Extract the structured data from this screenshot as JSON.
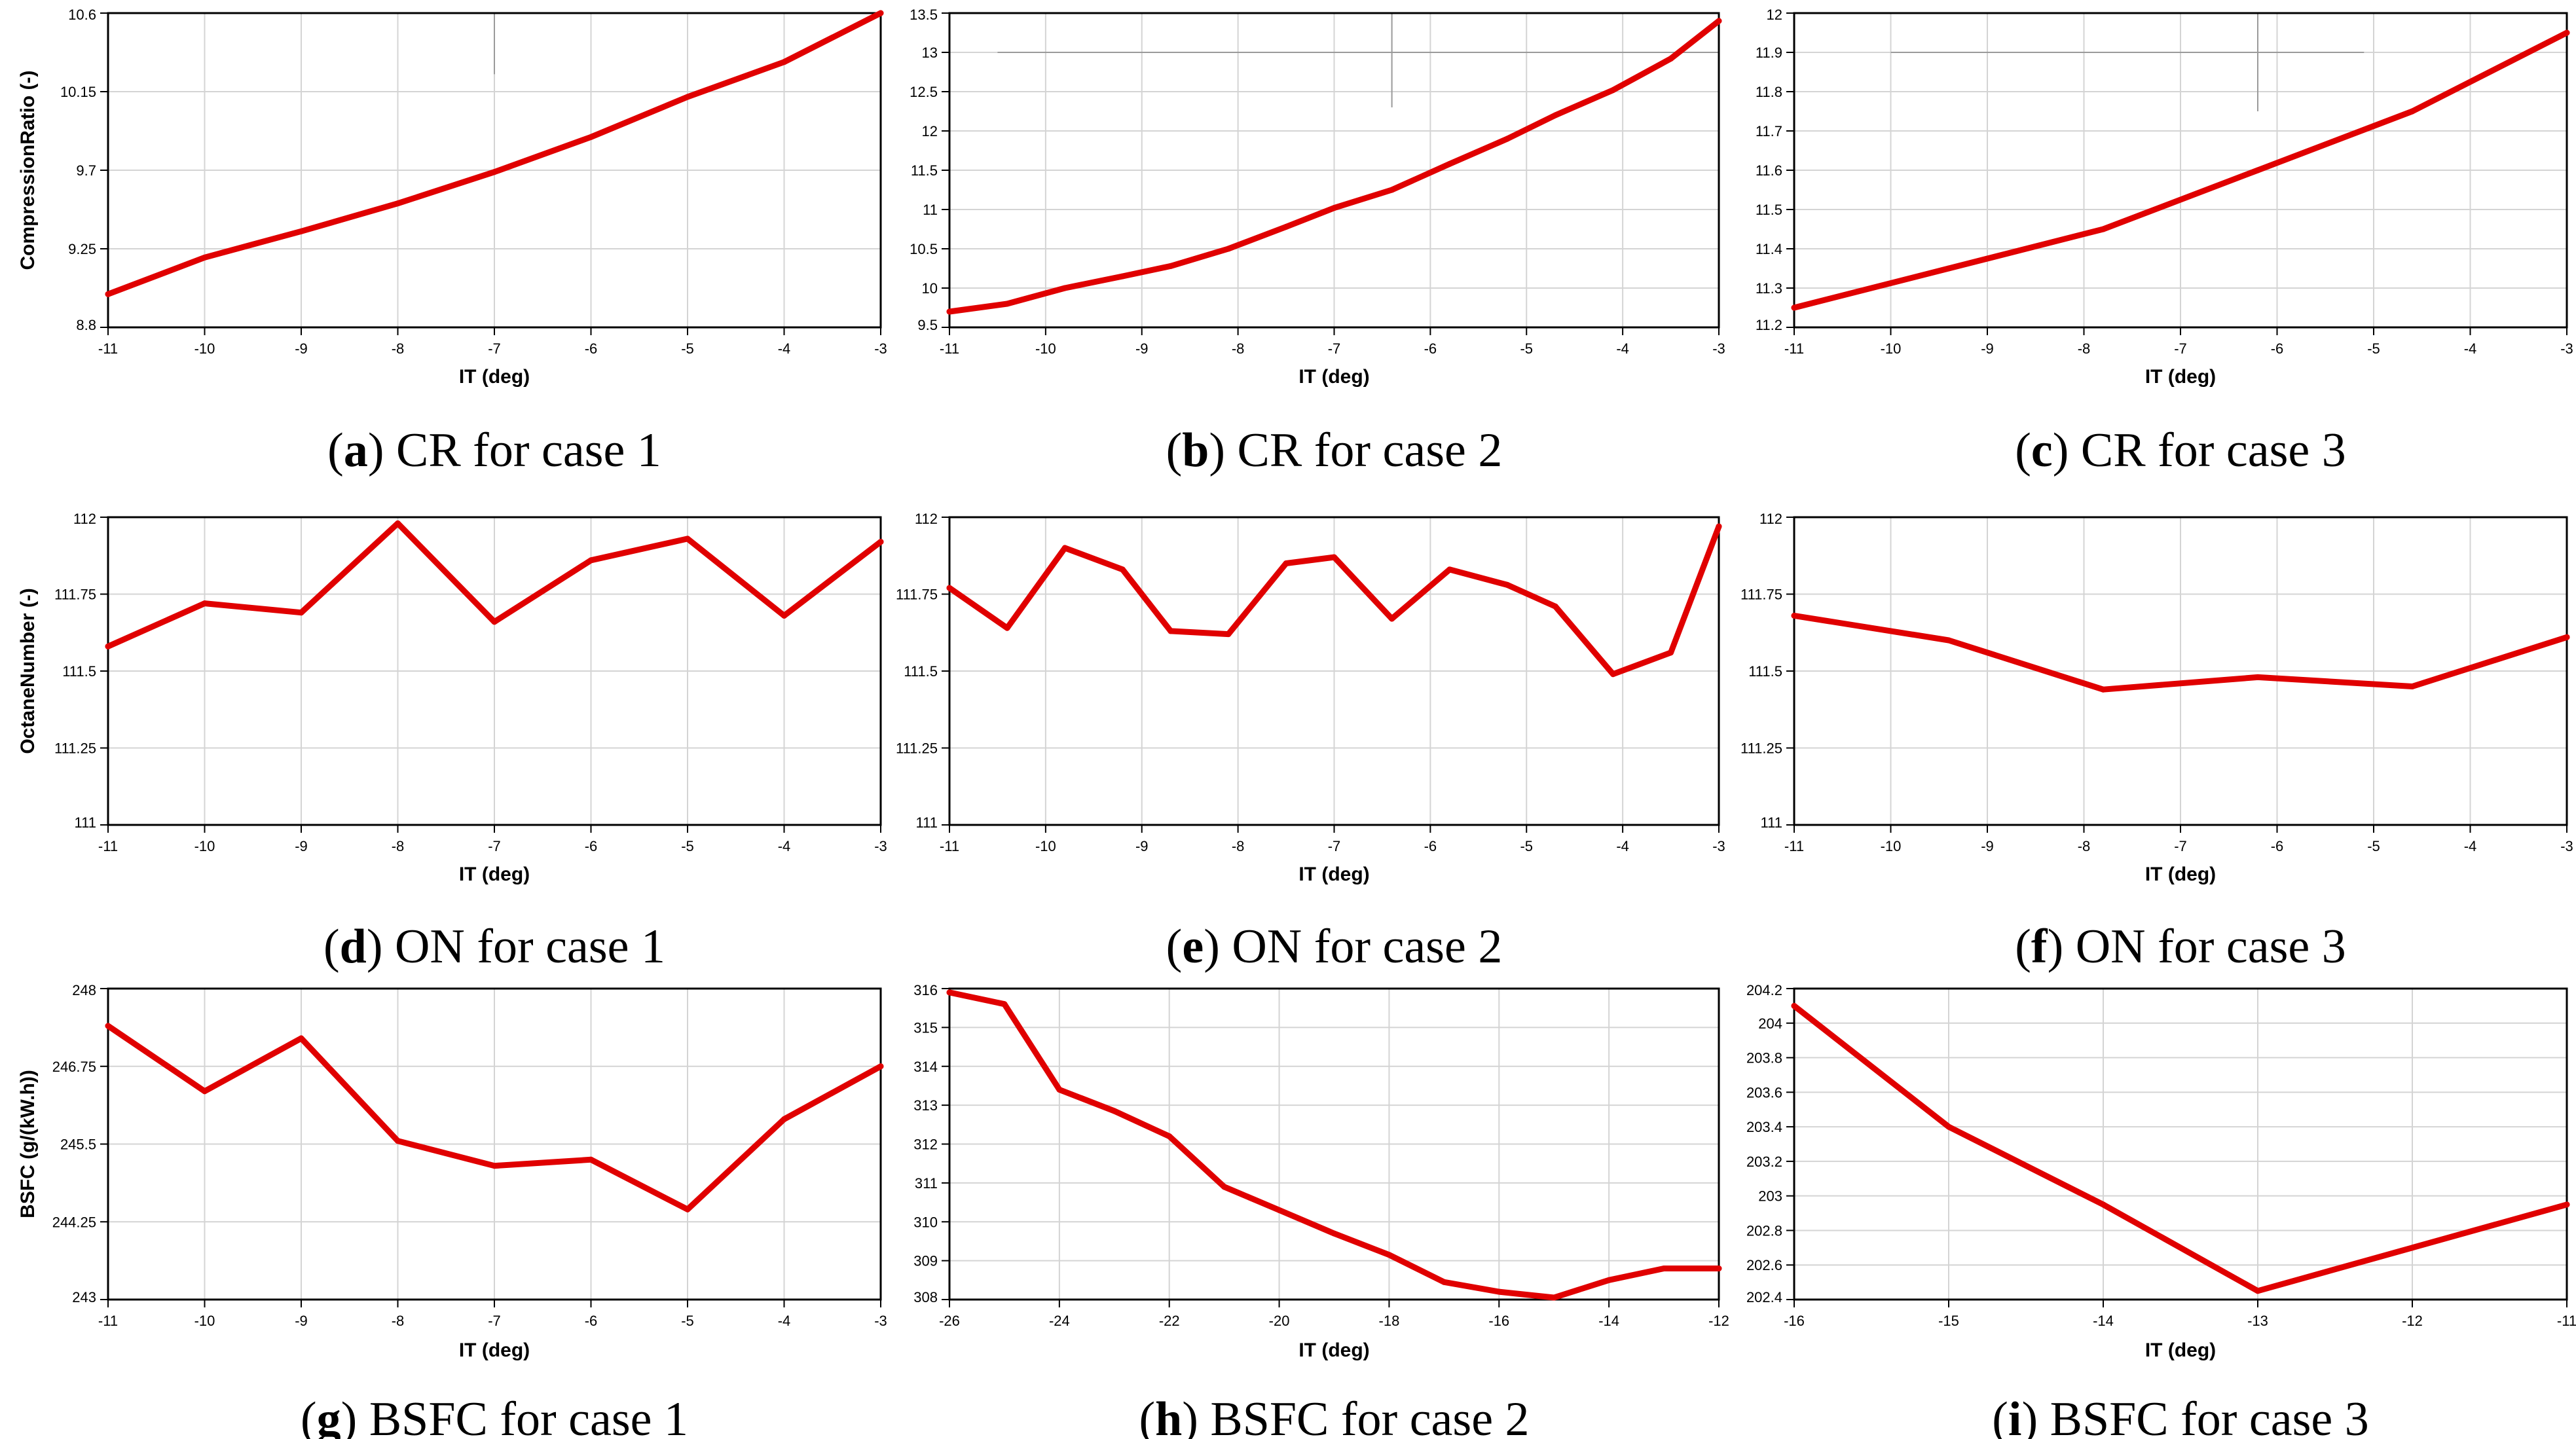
{
  "figure": {
    "line_color": "#e00000",
    "panels_count": 9
  },
  "chart_data": [
    {
      "id": "a",
      "type": "line",
      "caption": {
        "letter": "a",
        "text": "CR for case 1"
      },
      "xlabel": "IT (deg)",
      "ylabel": "CompressionRatio (-)",
      "xlim": [
        -11,
        -3
      ],
      "ylim": [
        8.8,
        10.6
      ],
      "xticks": [
        -11,
        -10,
        -9,
        -8,
        -7,
        -6,
        -5,
        -4,
        -3
      ],
      "yticks": [
        8.8,
        9.25,
        9.7,
        10.15,
        10.6
      ],
      "ytick_labels": [
        "8.8",
        "9.25",
        "9.7",
        "10.15",
        "10.6"
      ],
      "x": [
        -11,
        -10,
        -9,
        -8,
        -7,
        -6,
        -5,
        -4,
        -3
      ],
      "y": [
        8.99,
        9.2,
        9.35,
        9.51,
        9.69,
        9.89,
        10.12,
        10.32,
        10.6
      ],
      "cursor": {
        "x": -7,
        "y_from": 10.25,
        "y_to": 10.6
      }
    },
    {
      "id": "b",
      "type": "line",
      "caption": {
        "letter": "b",
        "text": "CR for case 2"
      },
      "xlabel": "IT (deg)",
      "ylabel": "",
      "xlim": [
        -11,
        -3
      ],
      "ylim": [
        9.5,
        13.5
      ],
      "xticks": [
        -11,
        -10,
        -9,
        -8,
        -7,
        -6,
        -5,
        -4,
        -3
      ],
      "yticks": [
        9.5,
        10,
        10.5,
        11,
        11.5,
        12,
        12.5,
        13,
        13.5
      ],
      "ytick_labels": [
        "9.5",
        "10",
        "10.5",
        "11",
        "11.5",
        "12",
        "12.5",
        "13",
        "13.5"
      ],
      "x": [
        -11,
        -10.4,
        -9.8,
        -9.2,
        -8.7,
        -8.1,
        -7.5,
        -7,
        -6.4,
        -5.8,
        -5.2,
        -4.7,
        -4.1,
        -3.5,
        -3
      ],
      "y": [
        9.7,
        9.8,
        10.0,
        10.15,
        10.28,
        10.5,
        10.78,
        11.02,
        11.25,
        11.58,
        11.9,
        12.2,
        12.52,
        12.92,
        13.4
      ],
      "cursor": {
        "x": -6.4,
        "y_from": 12.3,
        "y_to": 13.5,
        "h_y": 13,
        "h_x_from": -10.5,
        "h_x_to": -3
      }
    },
    {
      "id": "c",
      "type": "line",
      "caption": {
        "letter": "c",
        "text": "CR for case 3"
      },
      "xlabel": "IT (deg)",
      "ylabel": "",
      "xlim": [
        -11,
        -3
      ],
      "ylim": [
        11.2,
        12
      ],
      "xticks": [
        -11,
        -10,
        -9,
        -8,
        -7,
        -6,
        -5,
        -4,
        -3
      ],
      "yticks": [
        11.2,
        11.3,
        11.4,
        11.5,
        11.6,
        11.7,
        11.8,
        11.9,
        12
      ],
      "ytick_labels": [
        "11.2",
        "11.3",
        "11.4",
        "11.5",
        "11.6",
        "11.7",
        "11.8",
        "11.9",
        "12"
      ],
      "x": [
        -11,
        -9.4,
        -7.8,
        -6.2,
        -4.6,
        -3
      ],
      "y": [
        11.25,
        11.35,
        11.45,
        11.6,
        11.75,
        11.95
      ],
      "cursor": {
        "x": -6.2,
        "y_from": 11.75,
        "y_to": 12,
        "h_y": 11.9,
        "h_x_from": -10,
        "h_x_to": -5.1
      }
    },
    {
      "id": "d",
      "type": "line",
      "caption": {
        "letter": "d",
        "text": "ON for case 1"
      },
      "xlabel": "IT (deg)",
      "ylabel": "OctaneNumber (-)",
      "xlim": [
        -11,
        -3
      ],
      "ylim": [
        111,
        112
      ],
      "xticks": [
        -11,
        -10,
        -9,
        -8,
        -7,
        -6,
        -5,
        -4,
        -3
      ],
      "yticks": [
        111,
        111.25,
        111.5,
        111.75,
        112
      ],
      "ytick_labels": [
        "111",
        "111.25",
        "111.5",
        "111.75",
        "112"
      ],
      "x": [
        -11,
        -10,
        -9,
        -8,
        -7,
        -6,
        -5,
        -4,
        -3
      ],
      "y": [
        111.58,
        111.72,
        111.69,
        111.98,
        111.66,
        111.86,
        111.93,
        111.68,
        111.92
      ]
    },
    {
      "id": "e",
      "type": "line",
      "caption": {
        "letter": "e",
        "text": "ON for case 2"
      },
      "xlabel": "IT (deg)",
      "ylabel": "",
      "xlim": [
        -11,
        -3
      ],
      "ylim": [
        111,
        112
      ],
      "xticks": [
        -11,
        -10,
        -9,
        -8,
        -7,
        -6,
        -5,
        -4,
        -3
      ],
      "yticks": [
        111,
        111.25,
        111.5,
        111.75,
        112
      ],
      "ytick_labels": [
        "111",
        "111.25",
        "111.5",
        "111.75",
        "112"
      ],
      "x": [
        -11,
        -10.4,
        -9.8,
        -9.2,
        -8.7,
        -8.1,
        -7.5,
        -7,
        -6.4,
        -5.8,
        -5.2,
        -4.7,
        -4.1,
        -3.5,
        -3
      ],
      "y": [
        111.77,
        111.64,
        111.9,
        111.83,
        111.63,
        111.62,
        111.85,
        111.87,
        111.67,
        111.83,
        111.78,
        111.71,
        111.49,
        111.56,
        111.97
      ]
    },
    {
      "id": "f",
      "type": "line",
      "caption": {
        "letter": "f",
        "text": "ON for case 3"
      },
      "xlabel": "IT (deg)",
      "ylabel": "",
      "xlim": [
        -11,
        -3
      ],
      "ylim": [
        111,
        112
      ],
      "xticks": [
        -11,
        -10,
        -9,
        -8,
        -7,
        -6,
        -5,
        -4,
        -3
      ],
      "yticks": [
        111,
        111.25,
        111.5,
        111.75,
        112
      ],
      "ytick_labels": [
        "111",
        "111.25",
        "111.5",
        "111.75",
        "112"
      ],
      "x": [
        -11,
        -9.4,
        -7.8,
        -6.2,
        -4.6,
        -3
      ],
      "y": [
        111.68,
        111.6,
        111.44,
        111.48,
        111.45,
        111.61
      ]
    },
    {
      "id": "g",
      "type": "line",
      "caption": {
        "letter": "g",
        "text": "BSFC for case 1"
      },
      "xlabel": "IT (deg)",
      "ylabel": "BSFC (g/(kW.h))",
      "xlim": [
        -11,
        -3
      ],
      "ylim": [
        243,
        248
      ],
      "xticks": [
        -11,
        -10,
        -9,
        -8,
        -7,
        -6,
        -5,
        -4,
        -3
      ],
      "yticks": [
        243,
        244.25,
        245.5,
        246.75,
        248
      ],
      "ytick_labels": [
        "243",
        "244.25",
        "245.5",
        "246.75",
        "248"
      ],
      "x": [
        -11,
        -10,
        -9,
        -8,
        -7,
        -6,
        -5,
        -4,
        -3
      ],
      "y": [
        247.4,
        246.35,
        247.2,
        245.55,
        245.15,
        245.25,
        244.45,
        245.9,
        246.75
      ]
    },
    {
      "id": "h",
      "type": "line",
      "caption": {
        "letter": "h",
        "text": "BSFC for case 2"
      },
      "xlabel": "IT (deg)",
      "ylabel": "",
      "xlim": [
        -26,
        -12
      ],
      "ylim": [
        308,
        316
      ],
      "xticks": [
        -26,
        -24,
        -22,
        -20,
        -18,
        -16,
        -14,
        -12
      ],
      "yticks": [
        308,
        309,
        310,
        311,
        312,
        313,
        314,
        315,
        316
      ],
      "ytick_labels": [
        "308",
        "309",
        "310",
        "311",
        "312",
        "313",
        "314",
        "315",
        "316"
      ],
      "x": [
        -26,
        -25,
        -24,
        -23,
        -22,
        -21,
        -20,
        -19,
        -18,
        -17,
        -16,
        -15,
        -14,
        -13,
        -12
      ],
      "y": [
        315.9,
        315.6,
        313.4,
        312.85,
        312.2,
        310.9,
        310.3,
        309.7,
        309.15,
        308.45,
        308.2,
        308.05,
        308.5,
        308.8,
        308.8
      ]
    },
    {
      "id": "i",
      "type": "line",
      "caption": {
        "letter": "i",
        "text": "BSFC for case 3"
      },
      "xlabel": "IT (deg)",
      "ylabel": "",
      "xlim": [
        -16,
        -11
      ],
      "ylim": [
        202.4,
        204.2
      ],
      "xticks": [
        -16,
        -15,
        -14,
        -13,
        -12,
        -11
      ],
      "yticks": [
        202.4,
        202.6,
        202.8,
        203,
        203.2,
        203.4,
        203.6,
        203.8,
        204,
        204.2
      ],
      "ytick_labels": [
        "202.4",
        "202.6",
        "202.8",
        "203",
        "203.2",
        "203.4",
        "203.6",
        "203.8",
        "204",
        "204.2"
      ],
      "x": [
        -16,
        -15,
        -14,
        -13,
        -12,
        -11
      ],
      "y": [
        204.1,
        203.4,
        202.95,
        202.45,
        202.7,
        202.95
      ]
    }
  ]
}
